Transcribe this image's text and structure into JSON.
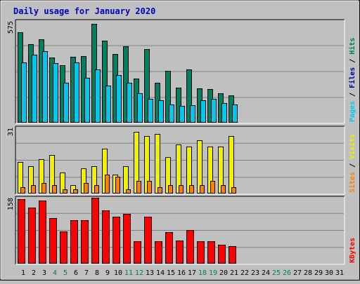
{
  "chart_data": {
    "type": "bar",
    "title": "Daily usage for January 2020",
    "days": [
      "1",
      "2",
      "3",
      "4",
      "5",
      "6",
      "7",
      "8",
      "9",
      "10",
      "11",
      "12",
      "13",
      "14",
      "15",
      "16",
      "17",
      "18",
      "19",
      "20",
      "21",
      "22",
      "23",
      "24",
      "25",
      "26",
      "27",
      "28",
      "29",
      "30",
      "31"
    ],
    "weekend_days": [
      "4",
      "5",
      "11",
      "12",
      "18",
      "19",
      "25",
      "26"
    ],
    "panels": [
      {
        "max_label": "575",
        "ymax": 575,
        "axis_label": [
          {
            "text": "Pages",
            "color": "#00c8f0"
          },
          {
            "text": " / ",
            "color": "#000000"
          },
          {
            "text": "Files",
            "color": "#0000a0"
          },
          {
            "text": " / ",
            "color": "#000000"
          },
          {
            "text": "Hits",
            "color": "#008060"
          }
        ],
        "series": [
          {
            "name": "Hits",
            "color": "#008060",
            "values": [
              510,
              445,
              470,
              370,
              325,
              372,
              375,
              560,
              465,
              390,
              432,
              248,
              415,
              228,
              295,
              200,
              300,
              195,
              190,
              168,
              155
            ]
          },
          {
            "name": "Files",
            "color": "#0000a0",
            "values": [
              0,
              0,
              0,
              0,
              0,
              0,
              0,
              0,
              0,
              0,
              0,
              0,
              0,
              0,
              0,
              0,
              0,
              0,
              0,
              0,
              0
            ]
          },
          {
            "name": "Pages",
            "color": "#00c8f0",
            "values": [
              340,
              385,
              405,
              338,
              225,
              340,
              255,
              300,
              210,
              270,
              225,
              165,
              135,
              125,
              105,
              95,
              100,
              125,
              135,
              110,
              105
            ]
          }
        ]
      },
      {
        "max_label": "31",
        "ymax": 31,
        "axis_label": [
          {
            "text": "Sites",
            "color": "#ff8000"
          },
          {
            "text": " / ",
            "color": "#000000"
          },
          {
            "text": "Visits",
            "color": "#f0f000"
          }
        ],
        "series": [
          {
            "name": "Visits",
            "color": "#f0f000",
            "values": [
              15,
              13,
              16,
              18,
              10,
              4,
              12,
              13,
              21,
              9,
              13,
              29,
              27,
              28,
              17,
              23,
              22,
              25,
              22,
              22,
              27
            ]
          },
          {
            "name": "Sites",
            "color": "#ff8000",
            "values": [
              3,
              4,
              5,
              4,
              2,
              2,
              5,
              4,
              9,
              8,
              2,
              6,
              6,
              3,
              4,
              4,
              4,
              4,
              6,
              4,
              3
            ]
          }
        ]
      },
      {
        "max_label": "158",
        "ymax": 158,
        "axis_label": [
          {
            "text": "KBytes",
            "color": "#ff0000"
          }
        ],
        "series": [
          {
            "name": "KBytes",
            "color": "#ff0000",
            "values": [
              155,
              135,
              152,
              110,
              78,
              105,
              105,
              158,
              127,
              113,
              120,
              53,
              112,
              53,
              75,
              55,
              80,
              53,
              53,
              45,
              42
            ]
          }
        ]
      }
    ]
  }
}
